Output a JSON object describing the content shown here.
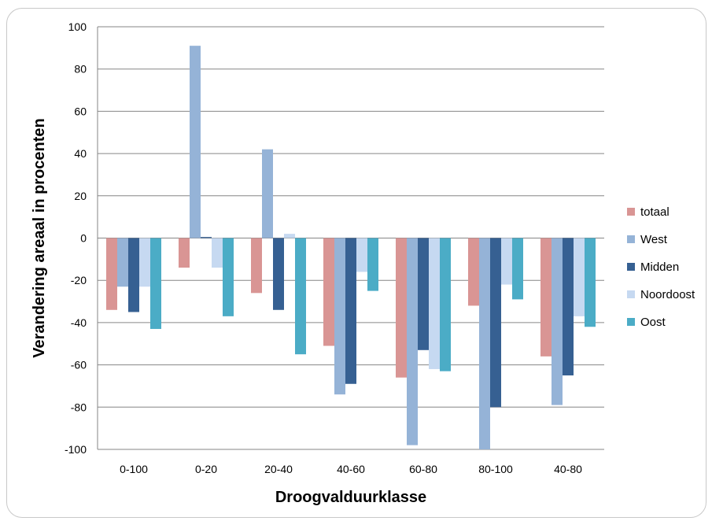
{
  "chart_data": {
    "type": "bar",
    "title": "",
    "xlabel": "Droogvalduurklasse",
    "ylabel": "Verandering  areaal in procenten",
    "ylim": [
      -100,
      100
    ],
    "yticks": [
      100,
      80,
      60,
      40,
      20,
      0,
      -20,
      -40,
      -60,
      -80,
      -100
    ],
    "grid": true,
    "legend_position": "right",
    "categories": [
      "0-100",
      "0-20",
      "20-40",
      "40-60",
      "60-80",
      "80-100",
      "40-80"
    ],
    "series": [
      {
        "name": "totaal",
        "color": "#d99594",
        "values": [
          -34,
          -14,
          -26,
          -51,
          -66,
          -32,
          -56
        ]
      },
      {
        "name": "West",
        "color": "#95b3d7",
        "values": [
          -23,
          91,
          42,
          -74,
          -98,
          -100,
          -79
        ]
      },
      {
        "name": "Midden",
        "color": "#366092",
        "values": [
          -35,
          0.5,
          -34,
          -69,
          -53,
          -80,
          -65
        ]
      },
      {
        "name": "Noordoost",
        "color": "#c6d9f1",
        "values": [
          -23,
          -14,
          2,
          -16,
          -62,
          -22,
          -37
        ]
      },
      {
        "name": "Oost",
        "color": "#4bacc6",
        "values": [
          -43,
          -37,
          -55,
          -25,
          -63,
          -29,
          -42
        ]
      }
    ]
  }
}
